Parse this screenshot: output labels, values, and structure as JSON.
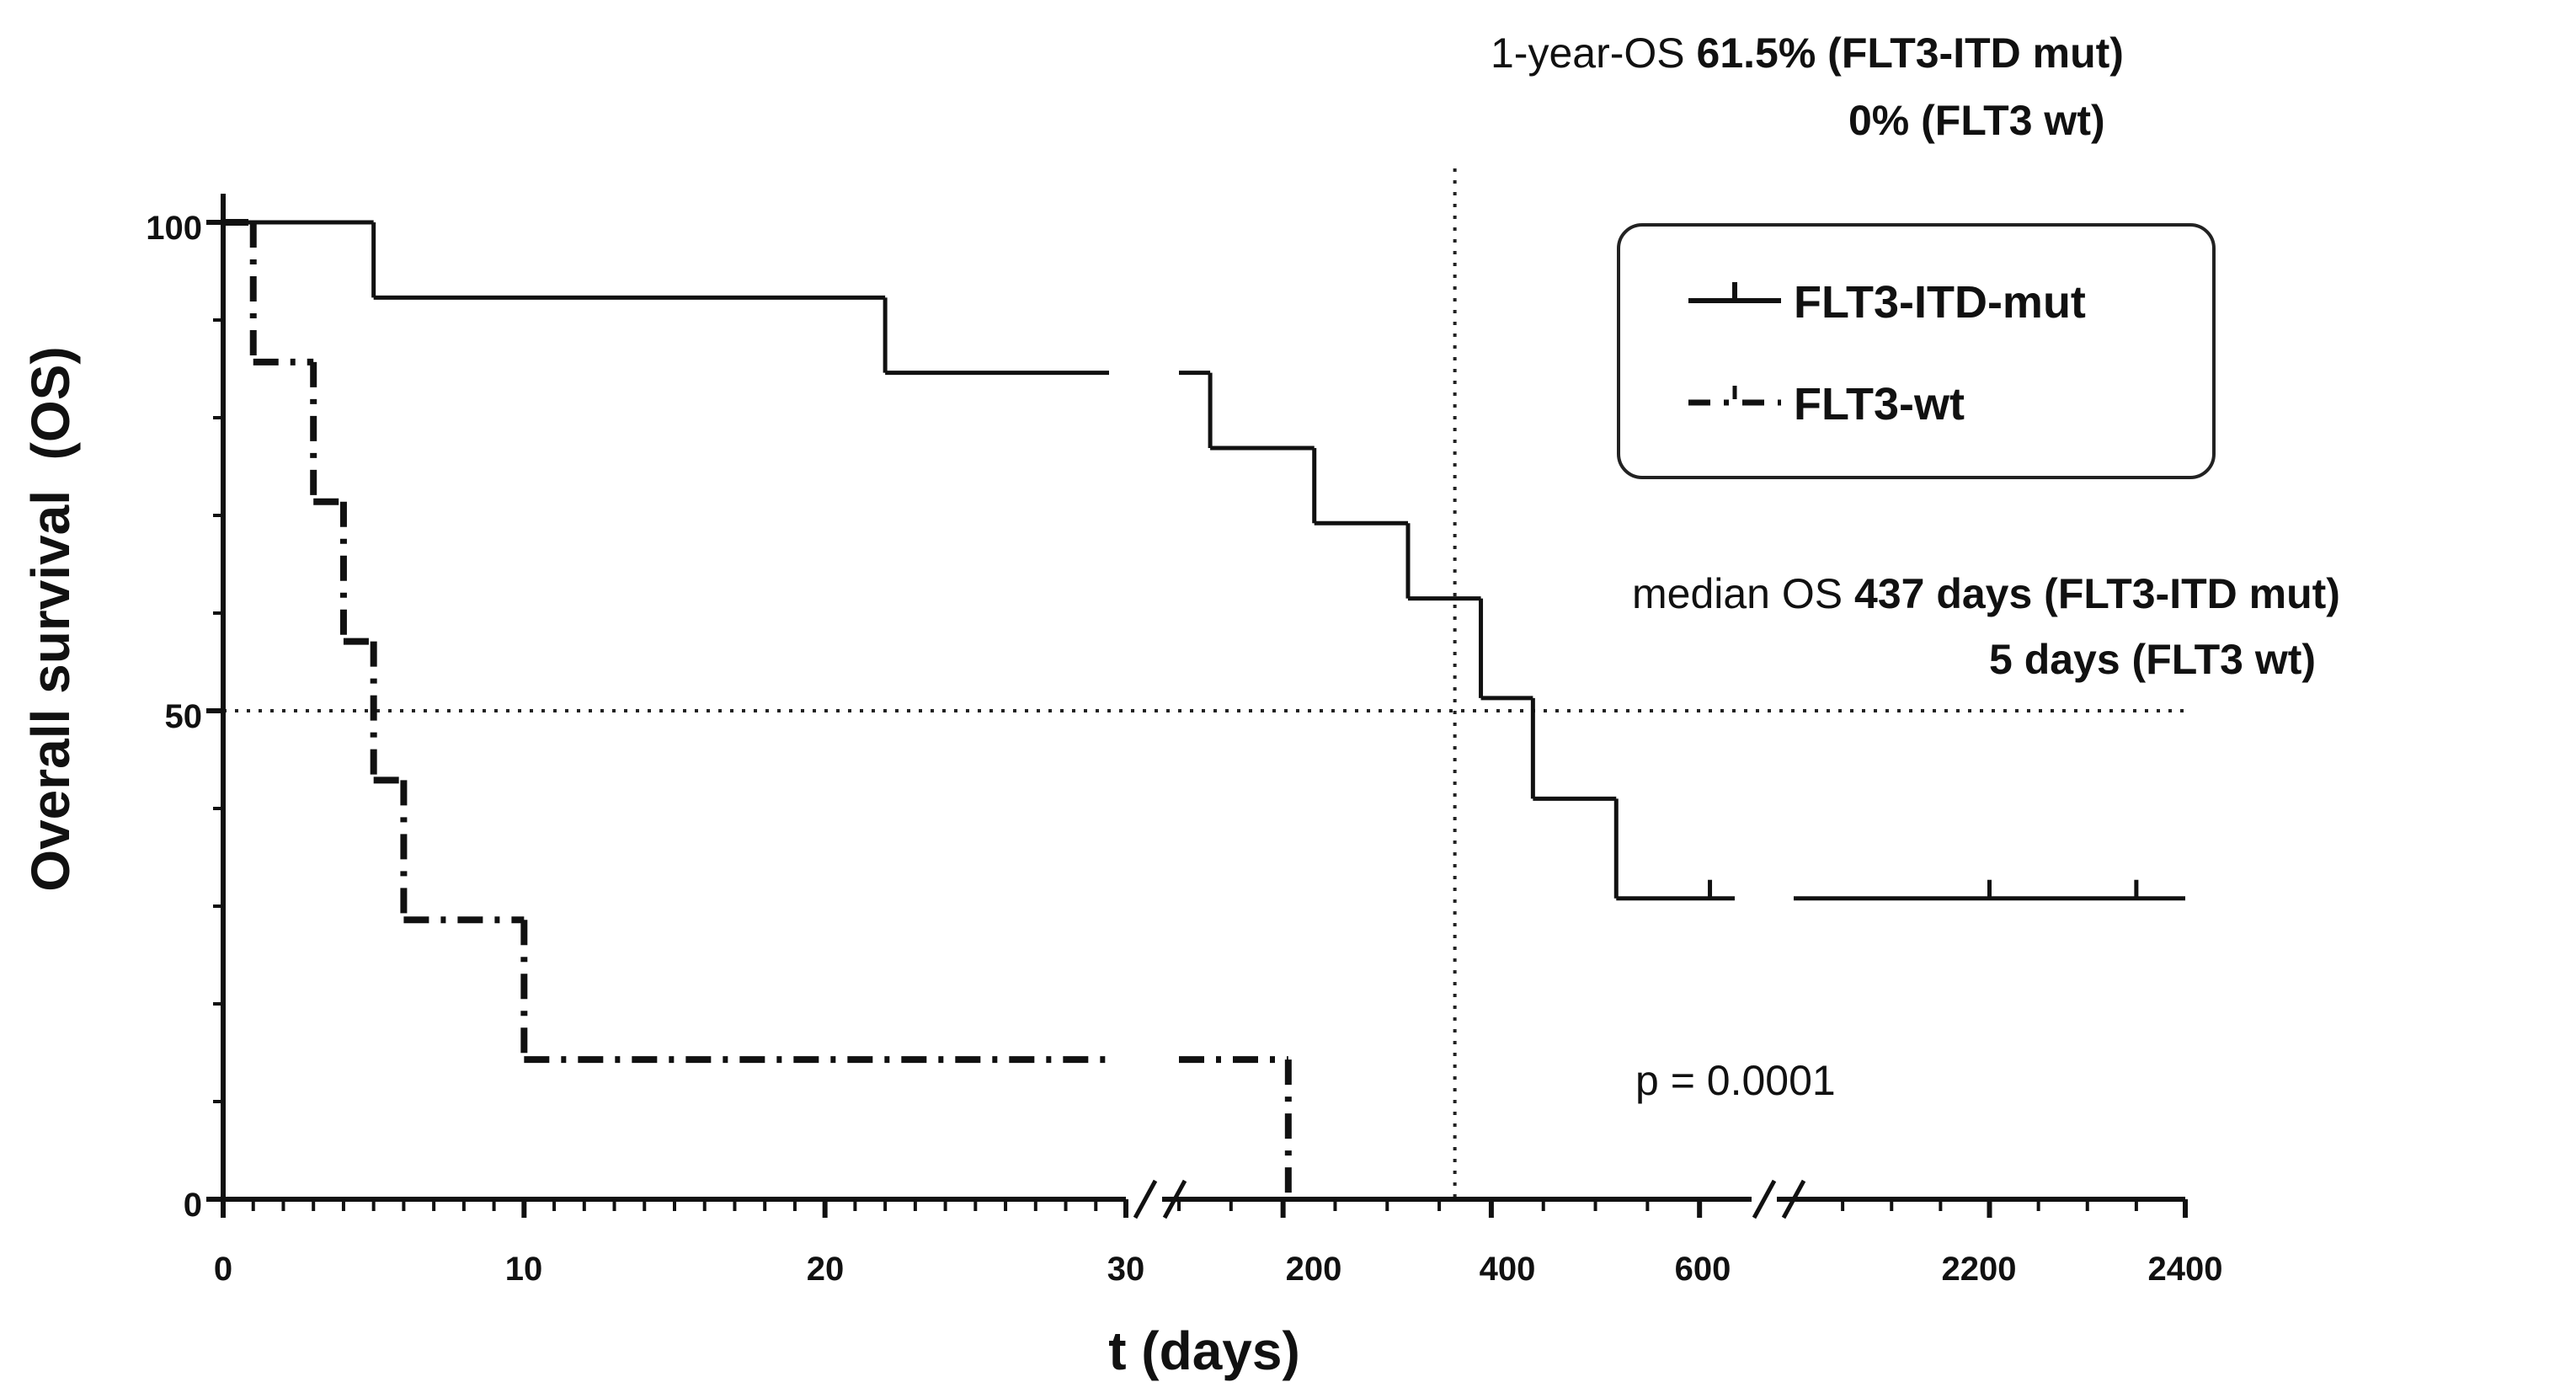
{
  "chart_data": {
    "type": "line",
    "title": "",
    "xlabel": "t (days)",
    "ylabel": "Overall survival  (OS)",
    "ylim": [
      0,
      100
    ],
    "y_ticks": [
      "0",
      "50",
      "100"
    ],
    "x_ticks": [
      "0",
      "10",
      "20",
      "30",
      "200",
      "400",
      "600",
      "2200",
      "2400"
    ],
    "x_axis_segments": [
      {
        "range": [
          0,
          30
        ],
        "labels": [
          "0",
          "10",
          "20",
          "30"
        ]
      },
      {
        "range": [
          100,
          650
        ],
        "labels": [
          "200",
          "400",
          "600"
        ]
      },
      {
        "range": [
          2000,
          2400
        ],
        "labels": [
          "2200",
          "2400"
        ]
      }
    ],
    "reference_lines": {
      "y": 50,
      "x_days": 365
    },
    "series": [
      {
        "name": "FLT3-ITD-mut",
        "style": "solid",
        "steps": [
          [
            0,
            100
          ],
          [
            5,
            92.3
          ],
          [
            22,
            84.6
          ],
          [
            130,
            76.9
          ],
          [
            230,
            69.2
          ],
          [
            320,
            61.5
          ],
          [
            390,
            51.3
          ],
          [
            440,
            41.0
          ],
          [
            520,
            30.8
          ],
          [
            2400,
            30.8
          ]
        ],
        "censored": [
          [
            610,
            30.8
          ],
          [
            2200,
            30.8
          ],
          [
            2350,
            30.8
          ]
        ]
      },
      {
        "name": "FLT3-wt",
        "style": "dash-dot",
        "steps": [
          [
            0,
            100
          ],
          [
            1,
            85.7
          ],
          [
            3,
            71.4
          ],
          [
            4,
            57.1
          ],
          [
            5,
            42.9
          ],
          [
            6,
            28.6
          ],
          [
            10,
            14.3
          ],
          [
            205,
            0
          ]
        ],
        "censored": []
      }
    ],
    "annotations": {
      "one_year_os": {
        "prefix": "1-year-OS ",
        "mut": "61.5% (FLT3-ITD mut)",
        "wt": "0% (FLT3 wt)"
      },
      "median_os": {
        "prefix": "median OS ",
        "mut": "437 days (FLT3-ITD mut)",
        "wt": "5 days (FLT3 wt)"
      },
      "p_value": "p = 0.0001"
    },
    "legend": {
      "position": "top-right",
      "entries": [
        {
          "label": "FLT3-ITD-mut",
          "style": "solid"
        },
        {
          "label": "FLT3-wt",
          "style": "dash-dot"
        }
      ]
    }
  }
}
